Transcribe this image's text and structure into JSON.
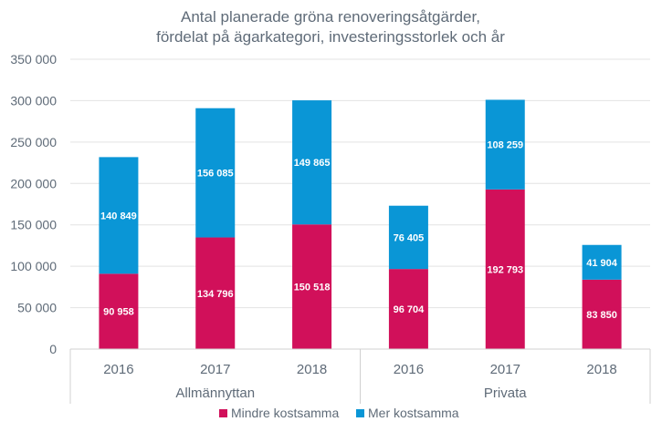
{
  "chart_data": {
    "type": "bar",
    "stacked": true,
    "title": [
      "Antal planerade gröna renoveringsåtgärder,",
      "fördelat på ägarkategori, investeringsstorlek och år"
    ],
    "groups": [
      {
        "name": "Allmännyttan",
        "categories": [
          "2016",
          "2017",
          "2018"
        ]
      },
      {
        "name": "Privata",
        "categories": [
          "2016",
          "2017",
          "2018"
        ]
      }
    ],
    "series": [
      {
        "name": "Mindre kostsamma",
        "color": "#d1105a",
        "values": [
          90958,
          134796,
          150518,
          96704,
          192793,
          83850
        ],
        "labels": [
          "90 958",
          "134 796",
          "150 518",
          "96 704",
          "192 793",
          "83 850"
        ]
      },
      {
        "name": "Mer kostsamma",
        "color": "#0a96d6",
        "values": [
          140849,
          156085,
          149865,
          76405,
          108259,
          41904
        ],
        "labels": [
          "140 849",
          "156 085",
          "149 865",
          "76 405",
          "108 259",
          "41 904"
        ]
      }
    ],
    "ylim": [
      0,
      350000
    ],
    "yticks": [
      0,
      50000,
      100000,
      150000,
      200000,
      250000,
      300000,
      350000
    ],
    "ytick_labels": [
      "0",
      "50 000",
      "100 000",
      "150 000",
      "200 000",
      "250 000",
      "300 000",
      "350 000"
    ],
    "grid": true,
    "legend": "bottom"
  }
}
